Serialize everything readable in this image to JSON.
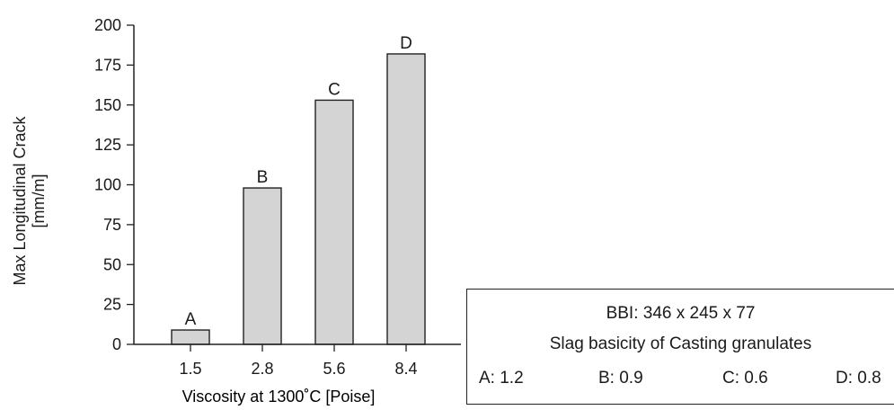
{
  "chart_data": {
    "type": "bar",
    "categories": [
      "1.5",
      "2.8",
      "5.6",
      "8.4"
    ],
    "values": [
      9,
      98,
      153,
      182
    ],
    "bar_labels": [
      "A",
      "B",
      "C",
      "D"
    ],
    "xlabel": "Viscosity at 1300˚C [Poise]",
    "ylabel_lines": [
      "Max Longitudinal Crack",
      "[mm/m]"
    ],
    "ylim": [
      0,
      200
    ],
    "yticks": [
      0,
      25,
      50,
      75,
      100,
      125,
      150,
      175,
      200
    ],
    "grid": false,
    "colors": {
      "bar_fill": "#d4d4d4",
      "bar_stroke": "#222222",
      "axis": "#222222"
    }
  },
  "legend": {
    "line1": "BBI: 346 x 245 x 77",
    "line2": "Slag basicity of Casting granulates",
    "items": [
      "A: 1.2",
      "B: 0.9",
      "C: 0.6",
      "D: 0.8"
    ]
  }
}
